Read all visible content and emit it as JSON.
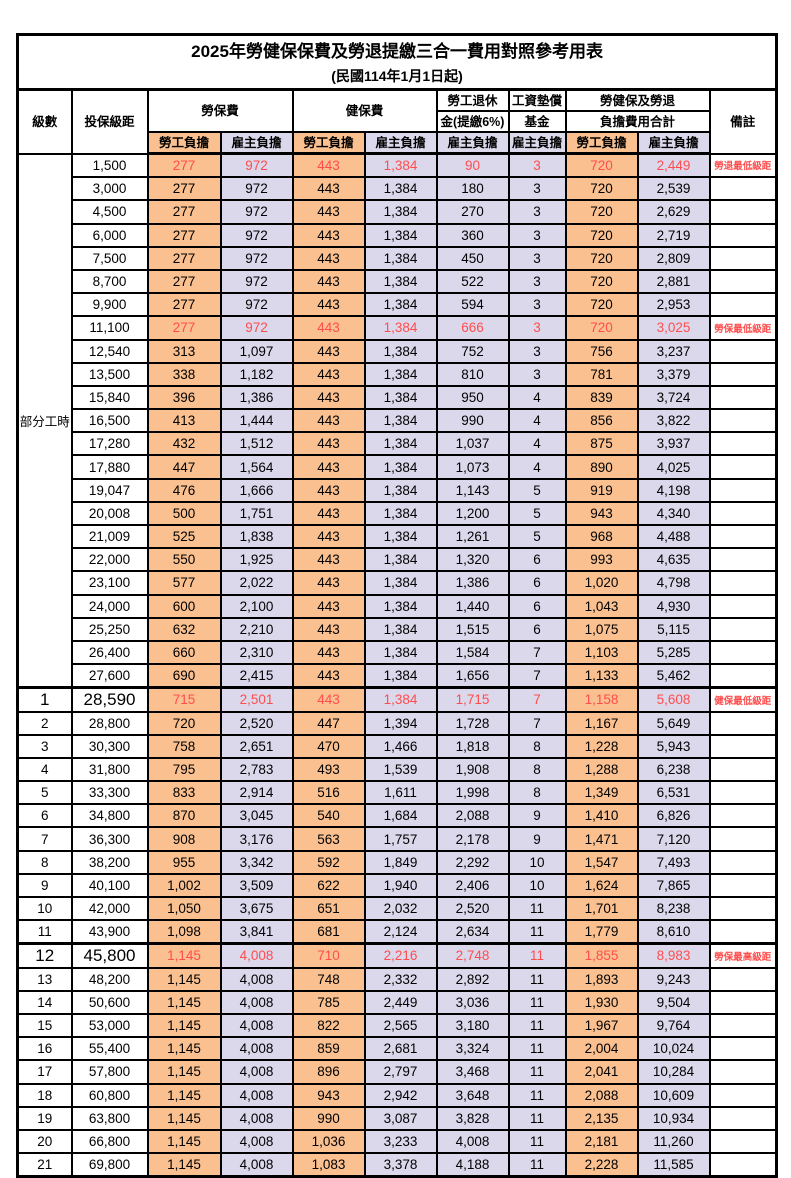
{
  "table": {
    "title": "2025年勞健保保費及勞退提繳三合一費用對照參考用表",
    "subtitle": "(民國114年1月1日起)",
    "headers": {
      "level": "級數",
      "bracket": "投保級距",
      "labor_insurance": "勞保費",
      "health_insurance": "健保費",
      "pension_line1": "勞工退休",
      "pension_line2": "金(提繳6%)",
      "wage_fund_line1": "工資墊償",
      "wage_fund_line2": "基金",
      "total_line1": "勞健保及勞退",
      "total_line2": "負擔費用合計",
      "remark": "備註",
      "employee": "勞工負擔",
      "employer": "雇主負擔"
    },
    "colors": {
      "employee_bg": "#FAC090",
      "employer_bg": "#DCD8EC",
      "highlight_text": "#FF4D4D",
      "border": "#000000"
    },
    "part_time_label": "部分工時",
    "part_time_rowspan": 23,
    "value_keys": [
      "li_emp",
      "li_er",
      "hi_emp",
      "hi_er",
      "pension",
      "fund",
      "sum_emp",
      "sum_er"
    ],
    "value_classes": [
      "emp",
      "er",
      "emp",
      "er",
      "er",
      "er",
      "emp",
      "er"
    ],
    "rows": [
      {
        "bracket": "1,500",
        "li_emp": "277",
        "li_er": "972",
        "hi_emp": "443",
        "hi_er": "1,384",
        "pension": "90",
        "fund": "3",
        "sum_emp": "720",
        "sum_er": "2,449",
        "remark": "勞退最低級距",
        "red": true
      },
      {
        "bracket": "3,000",
        "li_emp": "277",
        "li_er": "972",
        "hi_emp": "443",
        "hi_er": "1,384",
        "pension": "180",
        "fund": "3",
        "sum_emp": "720",
        "sum_er": "2,539"
      },
      {
        "bracket": "4,500",
        "li_emp": "277",
        "li_er": "972",
        "hi_emp": "443",
        "hi_er": "1,384",
        "pension": "270",
        "fund": "3",
        "sum_emp": "720",
        "sum_er": "2,629"
      },
      {
        "bracket": "6,000",
        "li_emp": "277",
        "li_er": "972",
        "hi_emp": "443",
        "hi_er": "1,384",
        "pension": "360",
        "fund": "3",
        "sum_emp": "720",
        "sum_er": "2,719"
      },
      {
        "bracket": "7,500",
        "li_emp": "277",
        "li_er": "972",
        "hi_emp": "443",
        "hi_er": "1,384",
        "pension": "450",
        "fund": "3",
        "sum_emp": "720",
        "sum_er": "2,809"
      },
      {
        "bracket": "8,700",
        "li_emp": "277",
        "li_er": "972",
        "hi_emp": "443",
        "hi_er": "1,384",
        "pension": "522",
        "fund": "3",
        "sum_emp": "720",
        "sum_er": "2,881"
      },
      {
        "bracket": "9,900",
        "li_emp": "277",
        "li_er": "972",
        "hi_emp": "443",
        "hi_er": "1,384",
        "pension": "594",
        "fund": "3",
        "sum_emp": "720",
        "sum_er": "2,953"
      },
      {
        "bracket": "11,100",
        "li_emp": "277",
        "li_er": "972",
        "hi_emp": "443",
        "hi_er": "1,384",
        "pension": "666",
        "fund": "3",
        "sum_emp": "720",
        "sum_er": "3,025",
        "remark": "勞保最低級距",
        "red": true
      },
      {
        "bracket": "12,540",
        "li_emp": "313",
        "li_er": "1,097",
        "hi_emp": "443",
        "hi_er": "1,384",
        "pension": "752",
        "fund": "3",
        "sum_emp": "756",
        "sum_er": "3,237"
      },
      {
        "bracket": "13,500",
        "li_emp": "338",
        "li_er": "1,182",
        "hi_emp": "443",
        "hi_er": "1,384",
        "pension": "810",
        "fund": "3",
        "sum_emp": "781",
        "sum_er": "3,379"
      },
      {
        "bracket": "15,840",
        "li_emp": "396",
        "li_er": "1,386",
        "hi_emp": "443",
        "hi_er": "1,384",
        "pension": "950",
        "fund": "4",
        "sum_emp": "839",
        "sum_er": "3,724"
      },
      {
        "bracket": "16,500",
        "li_emp": "413",
        "li_er": "1,444",
        "hi_emp": "443",
        "hi_er": "1,384",
        "pension": "990",
        "fund": "4",
        "sum_emp": "856",
        "sum_er": "3,822"
      },
      {
        "bracket": "17,280",
        "li_emp": "432",
        "li_er": "1,512",
        "hi_emp": "443",
        "hi_er": "1,384",
        "pension": "1,037",
        "fund": "4",
        "sum_emp": "875",
        "sum_er": "3,937"
      },
      {
        "bracket": "17,880",
        "li_emp": "447",
        "li_er": "1,564",
        "hi_emp": "443",
        "hi_er": "1,384",
        "pension": "1,073",
        "fund": "4",
        "sum_emp": "890",
        "sum_er": "4,025"
      },
      {
        "bracket": "19,047",
        "li_emp": "476",
        "li_er": "1,666",
        "hi_emp": "443",
        "hi_er": "1,384",
        "pension": "1,143",
        "fund": "5",
        "sum_emp": "919",
        "sum_er": "4,198"
      },
      {
        "bracket": "20,008",
        "li_emp": "500",
        "li_er": "1,751",
        "hi_emp": "443",
        "hi_er": "1,384",
        "pension": "1,200",
        "fund": "5",
        "sum_emp": "943",
        "sum_er": "4,340"
      },
      {
        "bracket": "21,009",
        "li_emp": "525",
        "li_er": "1,838",
        "hi_emp": "443",
        "hi_er": "1,384",
        "pension": "1,261",
        "fund": "5",
        "sum_emp": "968",
        "sum_er": "4,488"
      },
      {
        "bracket": "22,000",
        "li_emp": "550",
        "li_er": "1,925",
        "hi_emp": "443",
        "hi_er": "1,384",
        "pension": "1,320",
        "fund": "6",
        "sum_emp": "993",
        "sum_er": "4,635"
      },
      {
        "bracket": "23,100",
        "li_emp": "577",
        "li_er": "2,022",
        "hi_emp": "443",
        "hi_er": "1,384",
        "pension": "1,386",
        "fund": "6",
        "sum_emp": "1,020",
        "sum_er": "4,798"
      },
      {
        "bracket": "24,000",
        "li_emp": "600",
        "li_er": "2,100",
        "hi_emp": "443",
        "hi_er": "1,384",
        "pension": "1,440",
        "fund": "6",
        "sum_emp": "1,043",
        "sum_er": "4,930"
      },
      {
        "bracket": "25,250",
        "li_emp": "632",
        "li_er": "2,210",
        "hi_emp": "443",
        "hi_er": "1,384",
        "pension": "1,515",
        "fund": "6",
        "sum_emp": "1,075",
        "sum_er": "5,115"
      },
      {
        "bracket": "26,400",
        "li_emp": "660",
        "li_er": "2,310",
        "hi_emp": "443",
        "hi_er": "1,384",
        "pension": "1,584",
        "fund": "7",
        "sum_emp": "1,103",
        "sum_er": "5,285"
      },
      {
        "bracket": "27,600",
        "li_emp": "690",
        "li_er": "2,415",
        "hi_emp": "443",
        "hi_er": "1,384",
        "pension": "1,656",
        "fund": "7",
        "sum_emp": "1,133",
        "sum_er": "5,462"
      },
      {
        "level": "1",
        "bracket": "28,590",
        "li_emp": "715",
        "li_er": "2,501",
        "hi_emp": "443",
        "hi_er": "1,384",
        "pension": "1,715",
        "fund": "7",
        "sum_emp": "1,158",
        "sum_er": "5,608",
        "remark": "健保最低級距",
        "red": true,
        "big": true
      },
      {
        "level": "2",
        "bracket": "28,800",
        "li_emp": "720",
        "li_er": "2,520",
        "hi_emp": "447",
        "hi_er": "1,394",
        "pension": "1,728",
        "fund": "7",
        "sum_emp": "1,167",
        "sum_er": "5,649"
      },
      {
        "level": "3",
        "bracket": "30,300",
        "li_emp": "758",
        "li_er": "2,651",
        "hi_emp": "470",
        "hi_er": "1,466",
        "pension": "1,818",
        "fund": "8",
        "sum_emp": "1,228",
        "sum_er": "5,943"
      },
      {
        "level": "4",
        "bracket": "31,800",
        "li_emp": "795",
        "li_er": "2,783",
        "hi_emp": "493",
        "hi_er": "1,539",
        "pension": "1,908",
        "fund": "8",
        "sum_emp": "1,288",
        "sum_er": "6,238"
      },
      {
        "level": "5",
        "bracket": "33,300",
        "li_emp": "833",
        "li_er": "2,914",
        "hi_emp": "516",
        "hi_er": "1,611",
        "pension": "1,998",
        "fund": "8",
        "sum_emp": "1,349",
        "sum_er": "6,531"
      },
      {
        "level": "6",
        "bracket": "34,800",
        "li_emp": "870",
        "li_er": "3,045",
        "hi_emp": "540",
        "hi_er": "1,684",
        "pension": "2,088",
        "fund": "9",
        "sum_emp": "1,410",
        "sum_er": "6,826"
      },
      {
        "level": "7",
        "bracket": "36,300",
        "li_emp": "908",
        "li_er": "3,176",
        "hi_emp": "563",
        "hi_er": "1,757",
        "pension": "2,178",
        "fund": "9",
        "sum_emp": "1,471",
        "sum_er": "7,120"
      },
      {
        "level": "8",
        "bracket": "38,200",
        "li_emp": "955",
        "li_er": "3,342",
        "hi_emp": "592",
        "hi_er": "1,849",
        "pension": "2,292",
        "fund": "10",
        "sum_emp": "1,547",
        "sum_er": "7,493"
      },
      {
        "level": "9",
        "bracket": "40,100",
        "li_emp": "1,002",
        "li_er": "3,509",
        "hi_emp": "622",
        "hi_er": "1,940",
        "pension": "2,406",
        "fund": "10",
        "sum_emp": "1,624",
        "sum_er": "7,865"
      },
      {
        "level": "10",
        "bracket": "42,000",
        "li_emp": "1,050",
        "li_er": "3,675",
        "hi_emp": "651",
        "hi_er": "2,032",
        "pension": "2,520",
        "fund": "11",
        "sum_emp": "1,701",
        "sum_er": "8,238"
      },
      {
        "level": "11",
        "bracket": "43,900",
        "li_emp": "1,098",
        "li_er": "3,841",
        "hi_emp": "681",
        "hi_er": "2,124",
        "pension": "2,634",
        "fund": "11",
        "sum_emp": "1,779",
        "sum_er": "8,610"
      },
      {
        "level": "12",
        "bracket": "45,800",
        "li_emp": "1,145",
        "li_er": "4,008",
        "hi_emp": "710",
        "hi_er": "2,216",
        "pension": "2,748",
        "fund": "11",
        "sum_emp": "1,855",
        "sum_er": "8,983",
        "remark": "勞保最高級距",
        "red": true,
        "big": true
      },
      {
        "level": "13",
        "bracket": "48,200",
        "li_emp": "1,145",
        "li_er": "4,008",
        "hi_emp": "748",
        "hi_er": "2,332",
        "pension": "2,892",
        "fund": "11",
        "sum_emp": "1,893",
        "sum_er": "9,243"
      },
      {
        "level": "14",
        "bracket": "50,600",
        "li_emp": "1,145",
        "li_er": "4,008",
        "hi_emp": "785",
        "hi_er": "2,449",
        "pension": "3,036",
        "fund": "11",
        "sum_emp": "1,930",
        "sum_er": "9,504"
      },
      {
        "level": "15",
        "bracket": "53,000",
        "li_emp": "1,145",
        "li_er": "4,008",
        "hi_emp": "822",
        "hi_er": "2,565",
        "pension": "3,180",
        "fund": "11",
        "sum_emp": "1,967",
        "sum_er": "9,764"
      },
      {
        "level": "16",
        "bracket": "55,400",
        "li_emp": "1,145",
        "li_er": "4,008",
        "hi_emp": "859",
        "hi_er": "2,681",
        "pension": "3,324",
        "fund": "11",
        "sum_emp": "2,004",
        "sum_er": "10,024"
      },
      {
        "level": "17",
        "bracket": "57,800",
        "li_emp": "1,145",
        "li_er": "4,008",
        "hi_emp": "896",
        "hi_er": "2,797",
        "pension": "3,468",
        "fund": "11",
        "sum_emp": "2,041",
        "sum_er": "10,284"
      },
      {
        "level": "18",
        "bracket": "60,800",
        "li_emp": "1,145",
        "li_er": "4,008",
        "hi_emp": "943",
        "hi_er": "2,942",
        "pension": "3,648",
        "fund": "11",
        "sum_emp": "2,088",
        "sum_er": "10,609"
      },
      {
        "level": "19",
        "bracket": "63,800",
        "li_emp": "1,145",
        "li_er": "4,008",
        "hi_emp": "990",
        "hi_er": "3,087",
        "pension": "3,828",
        "fund": "11",
        "sum_emp": "2,135",
        "sum_er": "10,934"
      },
      {
        "level": "20",
        "bracket": "66,800",
        "li_emp": "1,145",
        "li_er": "4,008",
        "hi_emp": "1,036",
        "hi_er": "3,233",
        "pension": "4,008",
        "fund": "11",
        "sum_emp": "2,181",
        "sum_er": "11,260"
      },
      {
        "level": "21",
        "bracket": "69,800",
        "li_emp": "1,145",
        "li_er": "4,008",
        "hi_emp": "1,083",
        "hi_er": "3,378",
        "pension": "4,188",
        "fund": "11",
        "sum_emp": "2,228",
        "sum_er": "11,585"
      }
    ]
  }
}
